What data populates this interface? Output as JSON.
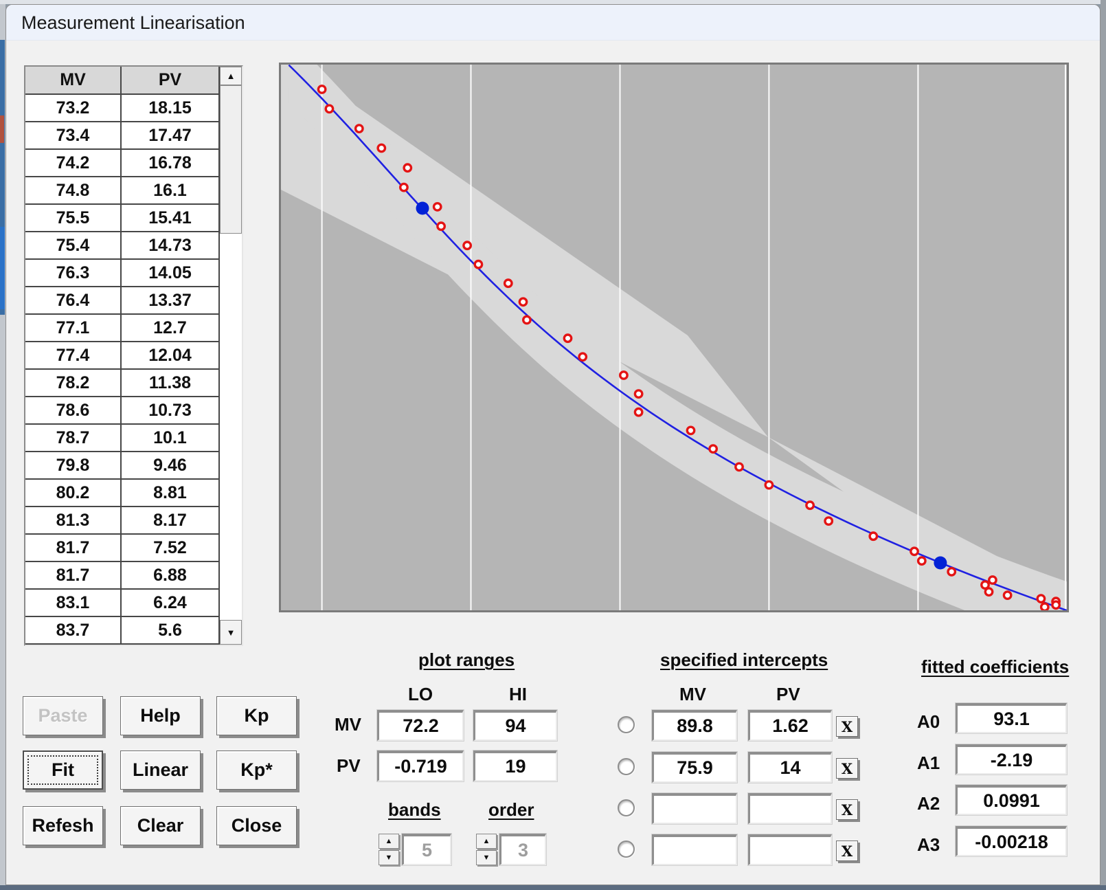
{
  "window": {
    "title": "Measurement Linearisation"
  },
  "table": {
    "columns": [
      "MV",
      "PV"
    ],
    "rows": [
      [
        "73.2",
        "18.15"
      ],
      [
        "73.4",
        "17.47"
      ],
      [
        "74.2",
        "16.78"
      ],
      [
        "74.8",
        "16.1"
      ],
      [
        "75.5",
        "15.41"
      ],
      [
        "75.4",
        "14.73"
      ],
      [
        "76.3",
        "14.05"
      ],
      [
        "76.4",
        "13.37"
      ],
      [
        "77.1",
        "12.7"
      ],
      [
        "77.4",
        "12.04"
      ],
      [
        "78.2",
        "11.38"
      ],
      [
        "78.6",
        "10.73"
      ],
      [
        "78.7",
        "10.1"
      ],
      [
        "79.8",
        "9.46"
      ],
      [
        "80.2",
        "8.81"
      ],
      [
        "81.3",
        "8.17"
      ],
      [
        "81.7",
        "7.52"
      ],
      [
        "81.7",
        "6.88"
      ],
      [
        "83.1",
        "6.24"
      ],
      [
        "83.7",
        "5.6"
      ]
    ]
  },
  "buttons": {
    "paste": "Paste",
    "help": "Help",
    "kp": "Kp",
    "fit": "Fit",
    "linear": "Linear",
    "kpstar": "Kp*",
    "refresh": "Refesh",
    "clear": "Clear",
    "close": "Close"
  },
  "plot_ranges": {
    "title": "plot ranges",
    "lo_label": "LO",
    "hi_label": "HI",
    "mv_label": "MV",
    "pv_label": "PV",
    "mv_lo": "72.2",
    "mv_hi": "94",
    "pv_lo": "-0.719",
    "pv_hi": "19",
    "bands_label": "bands",
    "bands_value": "5",
    "order_label": "order",
    "order_value": "3"
  },
  "intercepts": {
    "title": "specified intercepts",
    "mv_label": "MV",
    "pv_label": "PV",
    "clear_label": "X",
    "rows": [
      {
        "mv": "89.8",
        "pv": "1.62"
      },
      {
        "mv": "75.9",
        "pv": "14"
      },
      {
        "mv": "",
        "pv": ""
      },
      {
        "mv": "",
        "pv": ""
      }
    ]
  },
  "coefficients": {
    "title": "fitted coefficients",
    "rows": [
      {
        "label": "A0",
        "value": "93.1"
      },
      {
        "label": "A1",
        "value": "-2.19"
      },
      {
        "label": "A2",
        "value": "0.0991"
      },
      {
        "label": "A3",
        "value": "-0.00218"
      }
    ]
  },
  "chart_data": {
    "type": "scatter",
    "xlabel": "MV",
    "ylabel": "PV",
    "x_range": [
      72.2,
      94
    ],
    "y_range": [
      -0.719,
      19
    ],
    "grid": "vertical-only",
    "gridlines_mv": [
      73.2,
      77.2,
      81.2,
      85.2,
      89.2,
      93.2
    ],
    "fit_coefficients_A0_A3": [
      93.1,
      -2.19,
      0.0991,
      -0.00218
    ],
    "points_mv_pv": [
      [
        73.2,
        18.15
      ],
      [
        73.4,
        17.47
      ],
      [
        74.2,
        16.78
      ],
      [
        74.8,
        16.1
      ],
      [
        75.5,
        15.41
      ],
      [
        75.4,
        14.73
      ],
      [
        76.3,
        14.05
      ],
      [
        76.4,
        13.37
      ],
      [
        77.1,
        12.7
      ],
      [
        77.4,
        12.04
      ],
      [
        78.2,
        11.38
      ],
      [
        78.6,
        10.73
      ],
      [
        78.7,
        10.1
      ],
      [
        79.8,
        9.46
      ],
      [
        80.2,
        8.81
      ],
      [
        81.3,
        8.17
      ],
      [
        81.7,
        7.52
      ],
      [
        81.7,
        6.88
      ],
      [
        83.1,
        6.24
      ],
      [
        83.7,
        5.6
      ],
      [
        84.4,
        4.97
      ],
      [
        85.2,
        4.34
      ],
      [
        86.3,
        3.63
      ],
      [
        86.8,
        3.08
      ],
      [
        88.0,
        2.55
      ],
      [
        89.1,
        2.02
      ],
      [
        89.3,
        1.69
      ],
      [
        90.1,
        1.31
      ],
      [
        91.0,
        0.85
      ],
      [
        91.2,
        1.02
      ],
      [
        91.1,
        0.61
      ],
      [
        91.6,
        0.49
      ],
      [
        92.5,
        0.37
      ],
      [
        92.9,
        0.27
      ],
      [
        92.9,
        0.15
      ],
      [
        92.6,
        0.08
      ]
    ],
    "intercept_points_mv_pv": [
      [
        89.8,
        1.62
      ],
      [
        75.9,
        14
      ]
    ],
    "colors": {
      "plot_bg": "#b5b5b5",
      "confidence_band": "#d9d9d9",
      "gridline": "#fcfcfc",
      "curve": "#2021e2",
      "point_ring": "#e41414",
      "intercept_dot": "#0222d6"
    }
  }
}
